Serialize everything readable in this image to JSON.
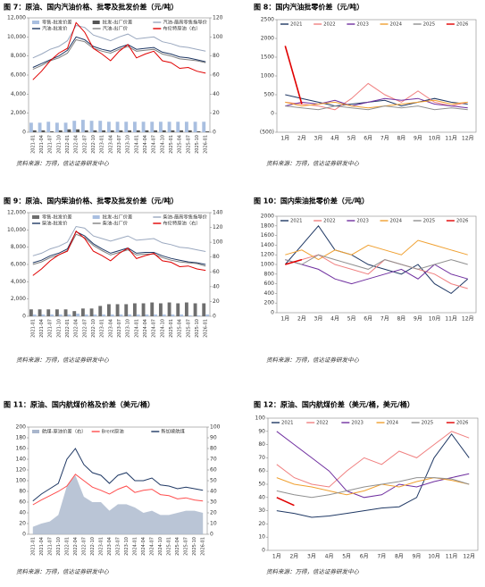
{
  "chart_data": [
    {
      "type": "combo",
      "title": "图 7：原油、国内汽油价格、批零及批发价差（元/吨）",
      "source": "资料来源：万得，信达证券研发中心",
      "categories": [
        "2021-01",
        "2021-04",
        "2021-07",
        "2021-10",
        "2022-01",
        "2022-04",
        "2022-07",
        "2022-10",
        "2023-01",
        "2023-04",
        "2023-07",
        "2023-10",
        "2024-01",
        "2024-04",
        "2024-07",
        "2024-10",
        "2025-01",
        "2025-04",
        "2025-07",
        "2025-10",
        "2026-01"
      ],
      "ylim": [
        0,
        12000
      ],
      "yticks": [
        0,
        {
          "value": 2000,
          "label": "2,000"
        },
        {
          "value": 4000,
          "label": "4,000"
        },
        {
          "value": 6000,
          "label": "6,000"
        },
        {
          "value": 8000,
          "label": "8,000"
        },
        {
          "value": 10000,
          "label": "10,000"
        },
        {
          "value": 12000,
          "label": "12,000"
        }
      ],
      "y2lim": [
        0,
        120
      ],
      "y2ticks": [
        0,
        20,
        40,
        60,
        80,
        100,
        120
      ],
      "series": [
        {
          "name": "零售-批发价差",
          "kind": "bar",
          "color": "#a9bfe0",
          "values": [
            1000,
            1000,
            1100,
            1000,
            1000,
            1200,
            1300,
            1200,
            1200,
            1100,
            1100,
            1100,
            1100,
            1100,
            1100,
            1100,
            1100,
            1100,
            1100,
            1100,
            1100
          ]
        },
        {
          "name": "批发-出厂价差",
          "kind": "bar",
          "color": "#555555",
          "values": [
            200,
            200,
            100,
            200,
            300,
            300,
            200,
            200,
            200,
            200,
            200,
            200,
            200,
            200,
            200,
            200,
            200,
            200,
            200,
            100,
            100
          ]
        },
        {
          "name": "汽油-最高零售指导价",
          "kind": "line",
          "color": "#9aa8bf",
          "values": [
            7800,
            8200,
            8700,
            9000,
            9600,
            11200,
            11000,
            10200,
            9900,
            9600,
            10000,
            10300,
            9800,
            9900,
            10000,
            9500,
            9300,
            9000,
            8900,
            8700,
            8500
          ]
        },
        {
          "name": "汽油-批发价",
          "kind": "line",
          "color": "#1f3864",
          "values": [
            6800,
            7200,
            7600,
            8000,
            8600,
            10000,
            9700,
            9000,
            8700,
            8500,
            8900,
            9200,
            8700,
            8800,
            8900,
            8400,
            8200,
            7900,
            7800,
            7600,
            7400
          ]
        },
        {
          "name": "汽油-出厂价",
          "kind": "line",
          "color": "#7f7f7f",
          "values": [
            6600,
            7000,
            7500,
            7800,
            8300,
            9700,
            9500,
            8800,
            8500,
            8300,
            8700,
            9000,
            8500,
            8600,
            8700,
            8200,
            8000,
            7700,
            7600,
            7500,
            7300
          ]
        },
        {
          "name": "布伦特原油（右）",
          "kind": "line",
          "axis": "y2",
          "color": "#e00000",
          "values": [
            55,
            64,
            75,
            83,
            88,
            115,
            105,
            88,
            82,
            75,
            85,
            92,
            78,
            82,
            85,
            75,
            73,
            67,
            68,
            64,
            62
          ]
        }
      ]
    },
    {
      "type": "line",
      "title": "图 8：国内汽油批零价差（元/吨）",
      "source": "资料来源：万得，信达证券研发中心",
      "categories": [
        "1月",
        "2月",
        "3月",
        "4月",
        "5月",
        "6月",
        "7月",
        "8月",
        "9月",
        "10月",
        "11月",
        "12月"
      ],
      "ylim": [
        -500,
        2500
      ],
      "yticks": [
        {
          "value": -500,
          "label": "(500)"
        },
        0,
        500,
        1000,
        1500,
        2000,
        2500
      ],
      "series": [
        {
          "name": "2021",
          "color": "#1f3864",
          "values": [
            500,
            400,
            300,
            200,
            250,
            300,
            350,
            200,
            300,
            400,
            300,
            250
          ]
        },
        {
          "name": "2022",
          "color": "#f08080",
          "values": [
            300,
            250,
            200,
            100,
            400,
            800,
            500,
            300,
            600,
            300,
            200,
            300
          ]
        },
        {
          "name": "2023",
          "color": "#7030a0",
          "values": [
            200,
            300,
            250,
            350,
            200,
            300,
            400,
            350,
            400,
            250,
            200,
            150
          ]
        },
        {
          "name": "2024",
          "color": "#f0a030",
          "values": [
            300,
            200,
            250,
            300,
            200,
            150,
            200,
            250,
            300,
            350,
            250,
            300
          ]
        },
        {
          "name": "2025",
          "color": "#909090",
          "values": [
            200,
            150,
            100,
            200,
            150,
            100,
            200,
            150,
            200,
            100,
            150,
            100
          ]
        },
        {
          "name": "2026",
          "color": "#e00000",
          "values": [
            1800,
            250,
            null,
            null,
            null,
            null,
            null,
            null,
            null,
            null,
            null,
            null
          ]
        }
      ]
    },
    {
      "type": "combo",
      "title": "图 9：原油、国内柴油价格、批零及批发价差（元/吨）",
      "source": "资料来源：万得，信达证券研发中心",
      "categories": [
        "2021-01",
        "2021-04",
        "2021-07",
        "2021-10",
        "2022-01",
        "2022-04",
        "2022-07",
        "2022-10",
        "2023-01",
        "2023-04",
        "2023-07",
        "2023-10",
        "2024-01",
        "2024-04",
        "2024-07",
        "2024-10",
        "2025-01",
        "2025-04",
        "2025-07",
        "2025-10",
        "2026-01"
      ],
      "ylim": [
        0,
        12000
      ],
      "yticks": [
        0,
        {
          "value": 2000,
          "label": "2,000"
        },
        {
          "value": 4000,
          "label": "4,000"
        },
        {
          "value": 6000,
          "label": "6,000"
        },
        {
          "value": 8000,
          "label": "8,000"
        },
        {
          "value": 10000,
          "label": "10,000"
        },
        {
          "value": 12000,
          "label": "12,000"
        }
      ],
      "y2lim": [
        0,
        140
      ],
      "y2ticks": [
        0,
        20,
        40,
        60,
        80,
        100,
        120,
        140
      ],
      "series": [
        {
          "name": "零售-批发价差",
          "kind": "bar",
          "color": "#6e6e6e",
          "values": [
            800,
            800,
            800,
            800,
            800,
            600,
            900,
            900,
            1200,
            1400,
            1400,
            1400,
            1500,
            1500,
            1600,
            1500,
            1600,
            1500,
            1600,
            1500,
            1500
          ]
        },
        {
          "name": "批发-出厂价差",
          "kind": "bar",
          "color": "#a9bfe0",
          "values": [
            200,
            200,
            200,
            200,
            200,
            300,
            200,
            200,
            200,
            200,
            200,
            200,
            200,
            200,
            200,
            200,
            200,
            200,
            100,
            100,
            200
          ]
        },
        {
          "name": "柴油-最高零售指导价",
          "kind": "line",
          "color": "#9aa8bf",
          "values": [
            7000,
            7300,
            7800,
            8100,
            8600,
            10400,
            10200,
            9300,
            9000,
            8700,
            9000,
            9300,
            8800,
            8900,
            9000,
            8500,
            8300,
            8000,
            7900,
            7700,
            7500
          ]
        },
        {
          "name": "柴油-批发价",
          "kind": "line",
          "color": "#1f3864",
          "values": [
            6200,
            6500,
            7000,
            7300,
            7800,
            9800,
            9300,
            8400,
            7800,
            7300,
            7600,
            7900,
            7300,
            7400,
            7400,
            7000,
            6700,
            6500,
            6300,
            6200,
            6000
          ]
        },
        {
          "name": "柴油-出厂价",
          "kind": "line",
          "color": "#7f7f7f",
          "values": [
            6000,
            6300,
            6800,
            7100,
            7600,
            9500,
            9100,
            8200,
            7600,
            7100,
            7400,
            7700,
            7100,
            7200,
            7200,
            6800,
            6500,
            6300,
            6200,
            6100,
            5800
          ]
        },
        {
          "name": "布伦特原油（右）",
          "kind": "line",
          "axis": "y2",
          "color": "#e00000",
          "values": [
            55,
            64,
            75,
            83,
            88,
            115,
            105,
            88,
            82,
            75,
            85,
            92,
            78,
            82,
            85,
            75,
            73,
            67,
            68,
            64,
            62
          ]
        }
      ]
    },
    {
      "type": "line",
      "title": "图 10：国内柴油批零价差（元/吨）",
      "source": "资料来源：万得，信达证券研发中心",
      "categories": [
        "1月",
        "2月",
        "3月",
        "4月",
        "5月",
        "6月",
        "7月",
        "8月",
        "9月",
        "10月",
        "11月",
        "12月"
      ],
      "ylim": [
        0,
        2000
      ],
      "yticks": [
        0,
        200,
        400,
        600,
        800,
        1000,
        1200,
        1400,
        1600,
        1800,
        2000
      ],
      "series": [
        {
          "name": "2021",
          "color": "#1f3864",
          "values": [
            1000,
            1400,
            1800,
            1300,
            1200,
            1000,
            900,
            800,
            1000,
            600,
            400,
            700
          ]
        },
        {
          "name": "2022",
          "color": "#f08080",
          "values": [
            1000,
            1100,
            1200,
            1000,
            900,
            800,
            1100,
            1000,
            900,
            800,
            600,
            500
          ]
        },
        {
          "name": "2023",
          "color": "#7030a0",
          "values": [
            1100,
            1000,
            900,
            700,
            600,
            700,
            800,
            900,
            700,
            1000,
            800,
            700
          ]
        },
        {
          "name": "2024",
          "color": "#f0a030",
          "values": [
            1200,
            1300,
            1100,
            1300,
            1200,
            1400,
            1300,
            1200,
            1500,
            1400,
            1300,
            1200
          ]
        },
        {
          "name": "2025",
          "color": "#909090",
          "values": [
            1100,
            1000,
            1200,
            1100,
            1000,
            900,
            1100,
            1000,
            900,
            1000,
            1100,
            1000
          ]
        },
        {
          "name": "2026",
          "color": "#e00000",
          "values": [
            1000,
            1100,
            null,
            null,
            null,
            null,
            null,
            null,
            null,
            null,
            null,
            null
          ]
        }
      ]
    },
    {
      "type": "combo",
      "title": "图 11：原油、国内航煤价格及价差（美元/桶）",
      "source": "资料来源：万得，信达证券研发中心",
      "categories": [
        "2021-01",
        "2021-04",
        "2021-07",
        "2021-10",
        "2022-01",
        "2022-04",
        "2022-07",
        "2022-10",
        "2023-01",
        "2023-04",
        "2023-07",
        "2023-10",
        "2024-01",
        "2024-04",
        "2024-07",
        "2024-10",
        "2025-01",
        "2025-04",
        "2025-07",
        "2025-10",
        "2026-01"
      ],
      "ylim": [
        0,
        200
      ],
      "yticks": [
        0,
        20,
        40,
        60,
        80,
        100,
        120,
        140,
        160,
        180,
        200
      ],
      "y2lim": [
        0,
        100
      ],
      "y2ticks": [
        0,
        10,
        20,
        30,
        40,
        50,
        60,
        70,
        80,
        90,
        100
      ],
      "series": [
        {
          "name": "航煤-原油价差（右）",
          "kind": "area",
          "axis": "y2",
          "color": "#a9b6cc",
          "values": [
            7,
            10,
            12,
            18,
            45,
            55,
            35,
            30,
            30,
            22,
            28,
            28,
            25,
            20,
            22,
            18,
            18,
            20,
            22,
            22,
            20
          ]
        },
        {
          "name": "Brent原油",
          "kind": "line",
          "color": "#ff4d4d",
          "values": [
            55,
            64,
            72,
            80,
            90,
            112,
            100,
            88,
            82,
            75,
            84,
            90,
            78,
            82,
            84,
            74,
            72,
            66,
            68,
            64,
            62
          ]
        },
        {
          "name": "新加坡航煤",
          "kind": "line",
          "color": "#1f3864",
          "values": [
            62,
            75,
            85,
            95,
            140,
            160,
            130,
            115,
            110,
            95,
            110,
            115,
            100,
            100,
            105,
            92,
            90,
            85,
            88,
            85,
            82
          ]
        }
      ]
    },
    {
      "type": "line",
      "title": "图 12：原油、国内航煤价差（美元/桶，美元/桶）",
      "source": "资料来源：万得，信达证券研发中心",
      "categories": [
        "1月",
        "2月",
        "3月",
        "4月",
        "5月",
        "6月",
        "7月",
        "8月",
        "9月",
        "10月",
        "11月",
        "12月"
      ],
      "ylim": [
        0,
        100
      ],
      "yticks": [
        0,
        10,
        20,
        30,
        40,
        50,
        60,
        70,
        80,
        90,
        100
      ],
      "series": [
        {
          "name": "2021",
          "color": "#1f3864",
          "values": [
            30,
            28,
            25,
            26,
            28,
            30,
            32,
            33,
            40,
            70,
            88,
            70
          ]
        },
        {
          "name": "2022",
          "color": "#f08080",
          "values": [
            65,
            55,
            50,
            48,
            60,
            70,
            65,
            75,
            70,
            80,
            90,
            85
          ]
        },
        {
          "name": "2023",
          "color": "#7030a0",
          "values": [
            90,
            80,
            70,
            60,
            45,
            40,
            42,
            50,
            48,
            52,
            55,
            58
          ]
        },
        {
          "name": "2024",
          "color": "#f0a030",
          "values": [
            55,
            50,
            48,
            45,
            42,
            45,
            50,
            48,
            52,
            55,
            53,
            50
          ]
        },
        {
          "name": "2025",
          "color": "#909090",
          "values": [
            45,
            42,
            40,
            42,
            45,
            48,
            50,
            52,
            55,
            55,
            54,
            50
          ]
        },
        {
          "name": "2026",
          "color": "#e00000",
          "values": [
            40,
            34,
            null,
            null,
            null,
            null,
            null,
            null,
            null,
            null,
            null,
            null
          ]
        }
      ]
    }
  ]
}
